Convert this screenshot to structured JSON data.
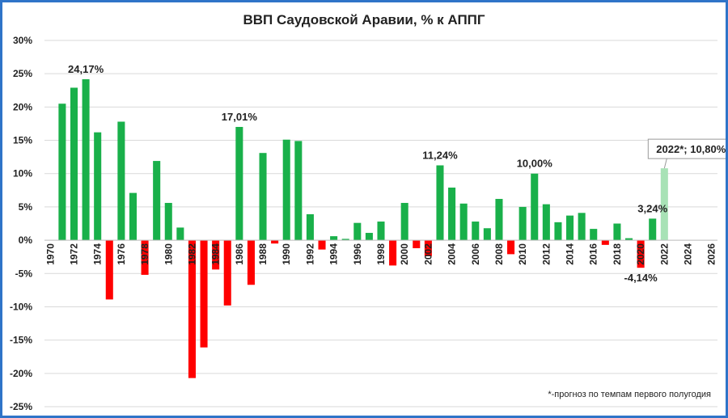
{
  "chart_data": {
    "type": "bar",
    "title": "ВВП Саудовской Аравии, % к АППГ",
    "footnote": "*-прогноз по темпам первого полугодия",
    "ylim": [
      -25,
      30
    ],
    "yticks": [
      "30%",
      "25%",
      "20%",
      "15%",
      "10%",
      "5%",
      "0%",
      "-5%",
      "-10%",
      "-15%",
      "-20%",
      "-25%"
    ],
    "ytick_values": [
      30,
      25,
      20,
      15,
      10,
      5,
      0,
      -5,
      -10,
      -15,
      -20,
      -25
    ],
    "xlim": [
      1970,
      2027
    ],
    "xtick_labels": [
      "1970",
      "1972",
      "1974",
      "1976",
      "1978",
      "1980",
      "1982",
      "1984",
      "1986",
      "1988",
      "1990",
      "1992",
      "1994",
      "1996",
      "1998",
      "2000",
      "2002",
      "2004",
      "2006",
      "2008",
      "2010",
      "2012",
      "2014",
      "2016",
      "2018",
      "2020",
      "2022",
      "2024",
      "2026"
    ],
    "grid": true,
    "colors": {
      "positive": "#19b04a",
      "negative": "#ff0000",
      "forecast": "#a8e2b6"
    },
    "categories": [
      1971,
      1972,
      1973,
      1974,
      1975,
      1976,
      1977,
      1978,
      1979,
      1980,
      1981,
      1982,
      1983,
      1984,
      1985,
      1986,
      1987,
      1988,
      1989,
      1990,
      1991,
      1992,
      1993,
      1994,
      1995,
      1996,
      1997,
      1998,
      1999,
      2000,
      2001,
      2002,
      2003,
      2004,
      2005,
      2006,
      2007,
      2008,
      2009,
      2010,
      2011,
      2012,
      2013,
      2014,
      2015,
      2016,
      2017,
      2018,
      2019,
      2020,
      2021,
      2022
    ],
    "values": [
      20.5,
      22.9,
      24.17,
      16.2,
      -8.9,
      17.8,
      7.1,
      -5.2,
      11.9,
      5.6,
      1.9,
      -20.7,
      -16.1,
      -4.4,
      -9.8,
      17.01,
      -6.7,
      13.1,
      -0.5,
      15.1,
      14.9,
      3.9,
      -1.4,
      0.6,
      0.2,
      2.6,
      1.1,
      2.8,
      -3.8,
      5.6,
      -1.2,
      -2.4,
      11.24,
      7.9,
      5.5,
      2.8,
      1.8,
      6.2,
      -2.1,
      5.0,
      10.0,
      5.4,
      2.7,
      3.7,
      4.1,
      1.7,
      -0.7,
      2.5,
      0.3,
      -4.14,
      3.24,
      10.8
    ],
    "forecast_category": 2022,
    "annotations": [
      {
        "category": 1973,
        "text": "24,17%"
      },
      {
        "category": 1986,
        "text": "17,01%"
      },
      {
        "category": 2003,
        "text": "11,24%"
      },
      {
        "category": 2011,
        "text": "10,00%"
      },
      {
        "category": 2021,
        "text": "3,24%"
      },
      {
        "category": 2020,
        "text": "-4,14%"
      },
      {
        "category": 2022,
        "text": "2022*; 10,80%"
      }
    ]
  }
}
